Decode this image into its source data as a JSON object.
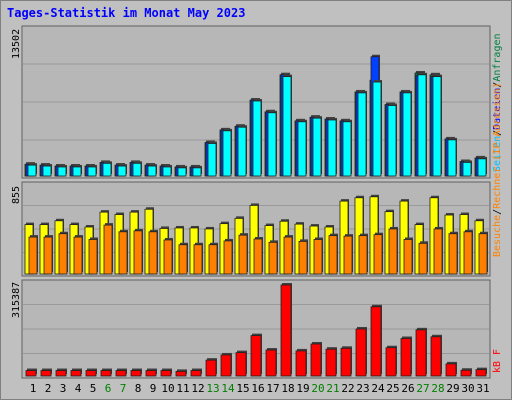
{
  "title": "Tages-Statistik im Monat May 2023",
  "colors": {
    "background": "#c0c0c0",
    "panel": "#b7b7b7",
    "besuche": "#00bfff",
    "seiten": "#00ffff",
    "anfragen_color": "#008040",
    "rechner": "#ffff00",
    "besuche2": "#ff8000",
    "kbf": "#ff0000",
    "title": "#0000ff",
    "weekend_day": "#008000"
  },
  "chart_data": [
    {
      "type": "bar",
      "name": "top",
      "y_max_label": "13502",
      "legend": {
        "anfragen": "Anfragen",
        "dateien": "Dateien",
        "seiten": "Seiten",
        "sep": "/"
      },
      "categories": [
        "1",
        "2",
        "3",
        "4",
        "5",
        "6",
        "7",
        "8",
        "9",
        "10",
        "11",
        "12",
        "13",
        "14",
        "15",
        "16",
        "17",
        "18",
        "19",
        "20",
        "21",
        "22",
        "23",
        "24",
        "25",
        "26",
        "27",
        "28",
        "29",
        "30",
        "31"
      ],
      "series": [
        {
          "name": "Anfragen",
          "values": [
            1300,
            1200,
            1100,
            1100,
            1100,
            1500,
            1200,
            1500,
            1200,
            1100,
            1000,
            1000,
            3700,
            5100,
            5500,
            8400,
            7100,
            11200,
            6100,
            6500,
            6300,
            6100,
            9300,
            10600,
            7900,
            9300,
            11400,
            11200,
            4100,
            1600,
            2000
          ]
        },
        {
          "name": "Dateien",
          "values": [
            1300,
            1200,
            1100,
            1100,
            1100,
            1500,
            1200,
            1500,
            1200,
            1100,
            1000,
            1000,
            3700,
            5100,
            5500,
            8400,
            7100,
            11200,
            6100,
            6500,
            6300,
            6100,
            9300,
            13200,
            7900,
            9300,
            11100,
            11000,
            4100,
            1600,
            2000
          ]
        },
        {
          "name": "Seiten",
          "values": [
            1200,
            1100,
            1000,
            1000,
            1000,
            1400,
            1100,
            1400,
            1100,
            1000,
            900,
            900,
            3600,
            5000,
            5400,
            8300,
            7000,
            11000,
            6000,
            6400,
            6200,
            6000,
            9200,
            10400,
            7800,
            9200,
            11200,
            11000,
            4000,
            1500,
            1900
          ]
        }
      ]
    },
    {
      "type": "bar",
      "name": "middle",
      "y_max_label": "855",
      "legend": {
        "rechner": "Rechner",
        "ip": "(IP-Adressen)",
        "besuche": "Besuche",
        "sep": "/"
      },
      "series": [
        {
          "name": "Rechner (IP-Adressen)",
          "values": [
            515,
            515,
            555,
            515,
            490,
            645,
            620,
            645,
            675,
            475,
            480,
            480,
            470,
            525,
            580,
            715,
            505,
            550,
            520,
            500,
            490,
            760,
            795,
            805,
            650,
            760,
            515,
            795,
            615,
            620,
            555
          ]
        },
        {
          "name": "Besuche",
          "values": [
            385,
            385,
            420,
            385,
            360,
            510,
            440,
            450,
            440,
            355,
            305,
            305,
            305,
            345,
            405,
            365,
            330,
            385,
            340,
            360,
            400,
            395,
            400,
            410,
            470,
            360,
            320,
            470,
            420,
            440,
            420
          ]
        }
      ]
    },
    {
      "type": "bar",
      "name": "bottom",
      "y_max_label": "315387",
      "legend": {
        "kbf": "kB F"
      },
      "series": [
        {
          "name": "kB F",
          "values": [
            19000,
            19000,
            19000,
            19000,
            19000,
            19000,
            19000,
            19000,
            19000,
            19000,
            16000,
            19000,
            55000,
            73000,
            81000,
            140000,
            90000,
            315387,
            87000,
            111000,
            93000,
            96000,
            163000,
            240000,
            98000,
            130000,
            160000,
            136000,
            42000,
            20000,
            22000
          ]
        }
      ]
    }
  ],
  "weekend_days": [
    6,
    7,
    13,
    14,
    20,
    21,
    27,
    28
  ]
}
